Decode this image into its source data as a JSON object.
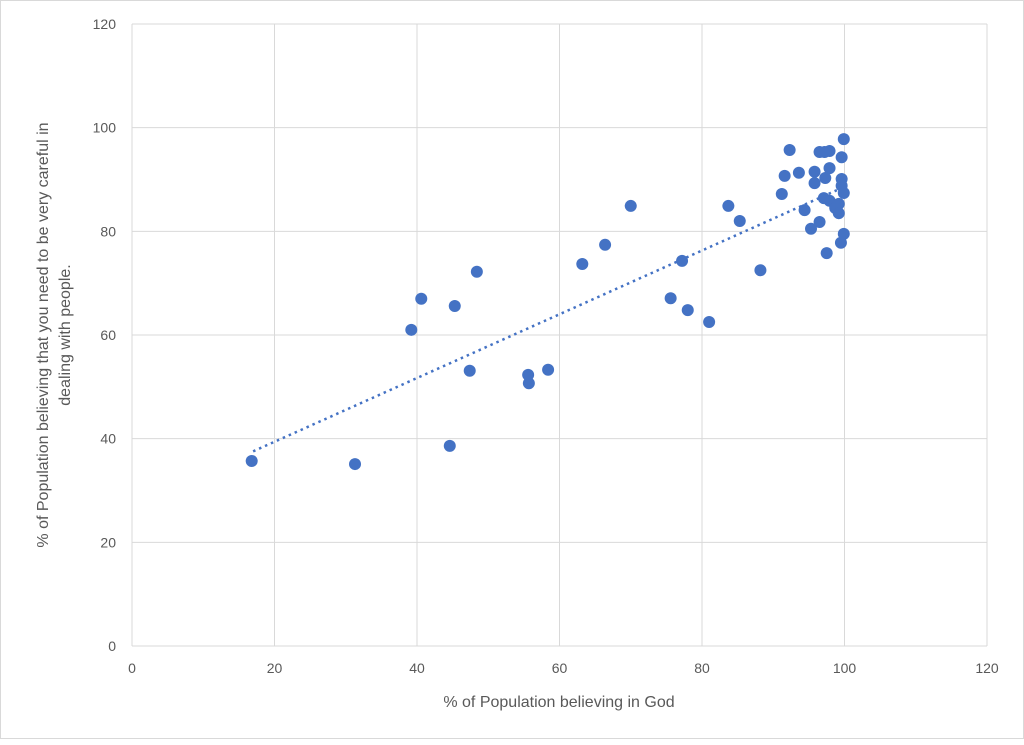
{
  "chart_data": {
    "type": "scatter",
    "title": "",
    "xlabel": "% of Population believing in God",
    "ylabel_lines": [
      "% of Population believing that you need to be very careful in",
      "dealing with people."
    ],
    "xlim": [
      0,
      120
    ],
    "ylim": [
      0,
      120
    ],
    "xticks": [
      0,
      20,
      40,
      60,
      80,
      100,
      120
    ],
    "yticks": [
      0,
      20,
      40,
      60,
      80,
      100,
      120
    ],
    "grid": true,
    "legend": "none",
    "marker_color": "#4472c4",
    "trendline": {
      "type": "linear",
      "style": "dotted",
      "x": [
        17,
        100
      ],
      "slope": 0.615,
      "intercept": 27.1
    },
    "points": [
      [
        16.8,
        35.7
      ],
      [
        31.3,
        35.1
      ],
      [
        44.6,
        38.6
      ],
      [
        39.2,
        61.0
      ],
      [
        40.6,
        67.0
      ],
      [
        45.3,
        65.6
      ],
      [
        48.4,
        72.2
      ],
      [
        47.4,
        53.1
      ],
      [
        55.6,
        52.3
      ],
      [
        55.7,
        50.7
      ],
      [
        58.4,
        53.3
      ],
      [
        63.2,
        73.7
      ],
      [
        66.4,
        77.4
      ],
      [
        70.0,
        84.9
      ],
      [
        75.6,
        67.1
      ],
      [
        78.0,
        64.8
      ],
      [
        77.2,
        74.3
      ],
      [
        81.0,
        62.5
      ],
      [
        83.7,
        84.9
      ],
      [
        85.3,
        82.0
      ],
      [
        88.2,
        72.5
      ],
      [
        99.9,
        97.8
      ],
      [
        92.3,
        95.7
      ],
      [
        96.5,
        95.3
      ],
      [
        97.2,
        95.3
      ],
      [
        97.9,
        95.5
      ],
      [
        99.6,
        94.3
      ],
      [
        91.6,
        90.7
      ],
      [
        93.6,
        91.3
      ],
      [
        95.8,
        91.5
      ],
      [
        97.9,
        92.2
      ],
      [
        97.3,
        90.3
      ],
      [
        95.8,
        89.3
      ],
      [
        99.6,
        90.1
      ],
      [
        99.6,
        88.8
      ],
      [
        99.9,
        87.4
      ],
      [
        91.2,
        87.2
      ],
      [
        97.1,
        86.4
      ],
      [
        97.9,
        85.9
      ],
      [
        99.2,
        85.3
      ],
      [
        98.7,
        84.5
      ],
      [
        99.2,
        83.5
      ],
      [
        94.4,
        84.1
      ],
      [
        96.5,
        81.8
      ],
      [
        95.3,
        80.5
      ],
      [
        99.9,
        79.5
      ],
      [
        99.5,
        77.8
      ],
      [
        97.5,
        75.8
      ]
    ]
  }
}
